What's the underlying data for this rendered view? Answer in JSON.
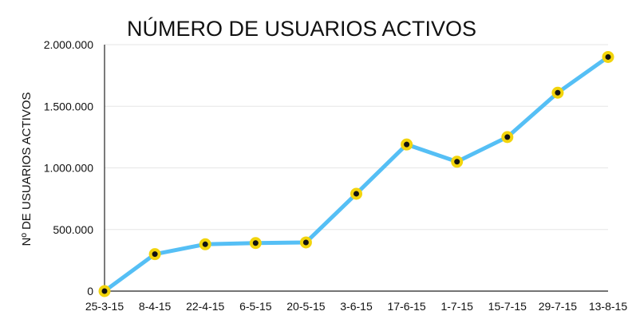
{
  "chart_data": {
    "type": "line",
    "title": "NÚMERO DE USUARIOS ACTIVOS",
    "xlabel": "",
    "ylabel": "Nº DE USUARIOS ACTIVOS",
    "categories": [
      "25-3-15",
      "8-4-15",
      "22-4-15",
      "6-5-15",
      "20-5-15",
      "3-6-15",
      "17-6-15",
      "1-7-15",
      "15-7-15",
      "29-7-15",
      "13-8-15"
    ],
    "series": [
      {
        "values": [
          0,
          300000,
          380000,
          390000,
          395000,
          790000,
          1190000,
          1050000,
          1250000,
          1610000,
          1900000
        ]
      }
    ],
    "ylim": [
      0,
      2000000
    ],
    "yticks": [
      0,
      500000,
      1000000,
      1500000,
      2000000
    ],
    "ytick_labels": [
      "0",
      "500.000",
      "1.000.000",
      "1.500.000",
      "2.000.000"
    ],
    "grid": true,
    "colors": {
      "line": "#55bff5",
      "marker_fill": "#111111",
      "marker_ring": "#f2d40c",
      "grid": "#e6e6e6",
      "axis": "#222222"
    }
  }
}
